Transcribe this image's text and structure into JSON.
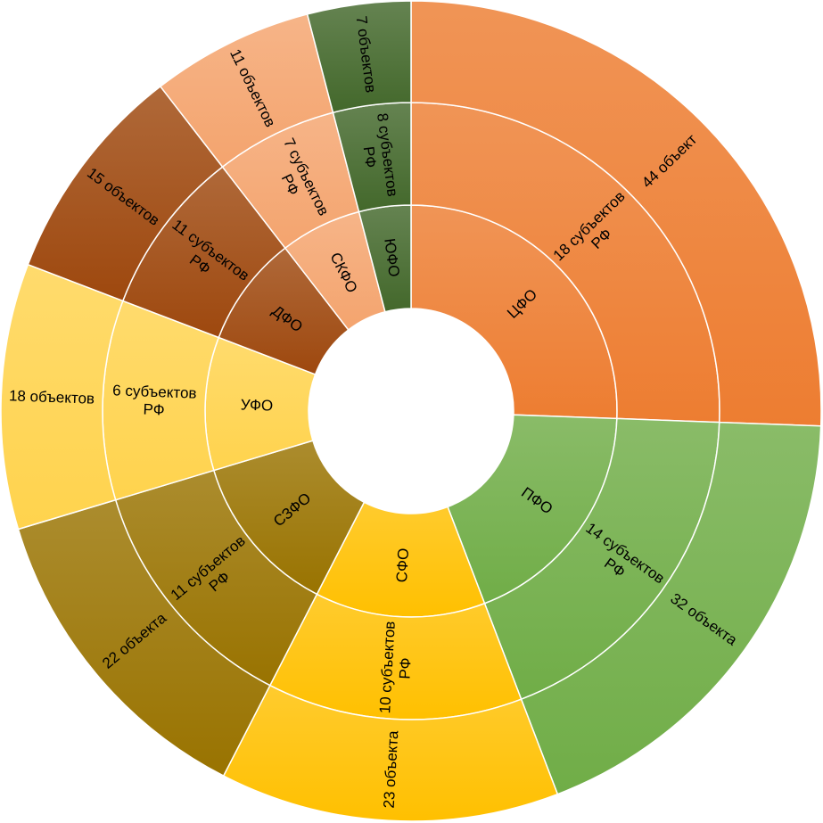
{
  "chart_data": {
    "type": "sunburst",
    "categories": [
      "ЦФО",
      "ПФО",
      "СФО",
      "СЗФО",
      "УФО",
      "ДФО",
      "СКФО",
      "ЮФО"
    ],
    "colors": [
      "#ed7d31",
      "#70ad47",
      "#ffc000",
      "#997300",
      "#ffd34d",
      "#9e480e",
      "#f4a46e",
      "#43682b"
    ],
    "subjects": {
      "values": [
        18,
        14,
        10,
        11,
        6,
        11,
        7,
        8
      ],
      "value_labels": [
        "18 субъектов РФ",
        "14 субъектов РФ",
        "10 субъектов РФ",
        "11 субъектов РФ",
        "6 субъектов РФ",
        "11 субъектов РФ",
        "7 субъектов РФ",
        "8 субъектов РФ"
      ]
    },
    "objects": {
      "values": [
        44,
        32,
        23,
        22,
        18,
        15,
        11,
        7
      ],
      "value_labels": [
        "44 объект",
        "32 объекта",
        "23 объекта",
        "22 объекта",
        "18 объектов",
        "15 объектов",
        "11 объектов",
        "7 объектов"
      ]
    }
  }
}
